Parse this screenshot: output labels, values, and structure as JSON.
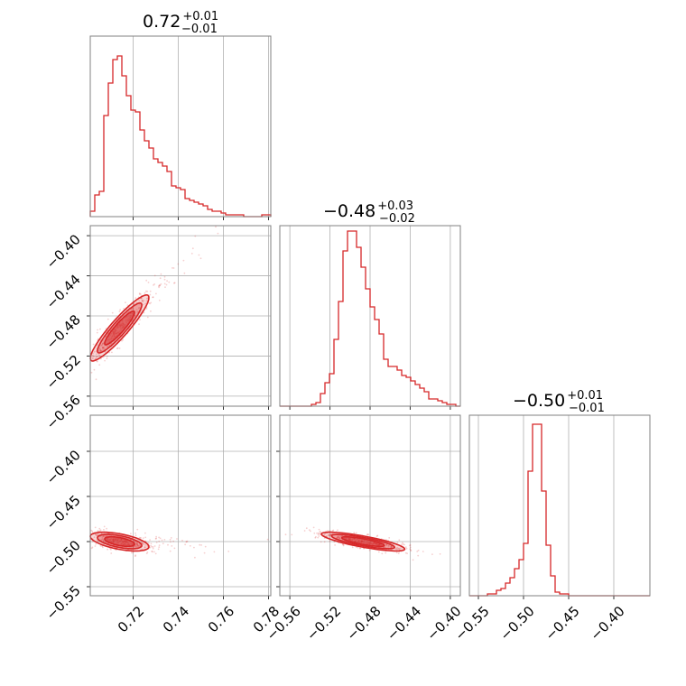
{
  "chart_data": {
    "type": "corner",
    "color": "#d62728",
    "grid": true,
    "titles": [
      {
        "value": "0.72",
        "plus": "+0.01",
        "minus": "−0.01"
      },
      {
        "value": "−0.48",
        "plus": "+0.03",
        "minus": "−0.02"
      },
      {
        "value": "−0.50",
        "plus": "+0.01",
        "minus": "−0.01"
      }
    ],
    "params": [
      {
        "range": [
          0.701,
          0.781
        ],
        "ticks": [
          0.72,
          0.74,
          0.76,
          0.78
        ],
        "tick_labels": [
          "0.72",
          "0.74",
          "0.76",
          "0.78"
        ]
      },
      {
        "range": [
          -0.57,
          -0.39
        ],
        "ticks": [
          -0.56,
          -0.52,
          -0.48,
          -0.44,
          -0.4
        ],
        "tick_labels": [
          "−0.56",
          "−0.52",
          "−0.48",
          "−0.44",
          "−0.40"
        ]
      },
      {
        "range": [
          -0.56,
          -0.36
        ],
        "ticks": [
          -0.55,
          -0.5,
          -0.45,
          -0.4
        ],
        "tick_labels": [
          "−0.55",
          "−0.50",
          "−0.45",
          "−0.40"
        ]
      }
    ],
    "hist_p1": {
      "bins": [
        0.701,
        0.781
      ],
      "counts": [
        0.03,
        0.12,
        0.14,
        0.56,
        0.74,
        0.87,
        0.89,
        0.78,
        0.67,
        0.59,
        0.58,
        0.48,
        0.42,
        0.38,
        0.32,
        0.3,
        0.28,
        0.25,
        0.17,
        0.16,
        0.15,
        0.1,
        0.09,
        0.08,
        0.07,
        0.06,
        0.04,
        0.03,
        0.03,
        0.02,
        0.01,
        0.01,
        0.01,
        0.01,
        0.0,
        0.0,
        0.0,
        0.0,
        0.01,
        0.01
      ]
    },
    "hist_p2": {
      "bins": [
        -0.57,
        -0.39
      ],
      "counts": [
        0.0,
        0.0,
        0.0,
        0.0,
        0.0,
        0.0,
        0.0,
        0.01,
        0.02,
        0.07,
        0.13,
        0.18,
        0.37,
        0.58,
        0.86,
        0.97,
        0.97,
        0.88,
        0.77,
        0.65,
        0.55,
        0.48,
        0.4,
        0.26,
        0.22,
        0.22,
        0.2,
        0.17,
        0.16,
        0.14,
        0.12,
        0.1,
        0.08,
        0.04,
        0.04,
        0.03,
        0.02,
        0.01,
        0.01,
        0.0
      ]
    },
    "hist_p3": {
      "bins": [
        -0.56,
        -0.36
      ],
      "counts": [
        0.0,
        0.0,
        0.0,
        0.0,
        0.01,
        0.01,
        0.03,
        0.04,
        0.07,
        0.1,
        0.15,
        0.2,
        0.29,
        0.69,
        0.95,
        0.95,
        0.58,
        0.28,
        0.11,
        0.02,
        0.01,
        0.01,
        0.0,
        0.0,
        0.0,
        0.0,
        0.0,
        0.0,
        0.0,
        0.0,
        0.0,
        0.0,
        0.0,
        0.0,
        0.0,
        0.0,
        0.0,
        0.0,
        0.0,
        0.0
      ]
    },
    "joint_p1_p2": {
      "mean": [
        0.714,
        -0.492
      ],
      "sd": [
        0.0075,
        0.019
      ],
      "rho": 0.92
    },
    "joint_p1_p3": {
      "mean": [
        0.714,
        -0.5
      ],
      "sd": [
        0.0075,
        0.006
      ],
      "rho": -0.55
    },
    "joint_p2_p3": {
      "mean": [
        -0.487,
        -0.5
      ],
      "sd": [
        0.024,
        0.006
      ],
      "rho": -0.8
    },
    "contour_levels": [
      0.39,
      0.86,
      1.5
    ]
  }
}
